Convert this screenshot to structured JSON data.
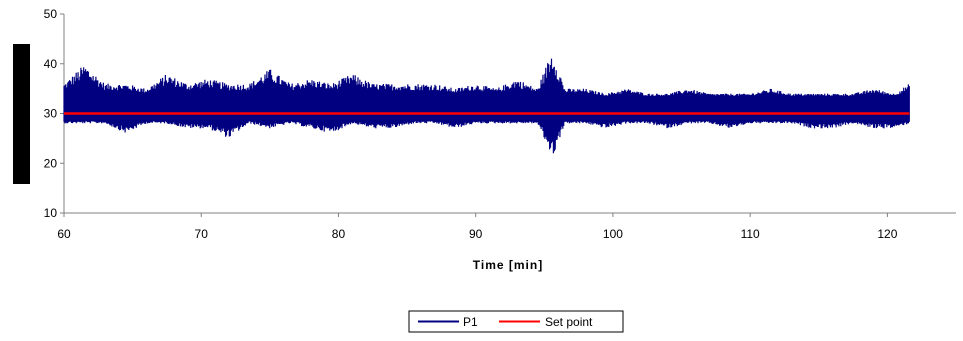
{
  "chart_data": {
    "type": "line",
    "title": "",
    "xlabel": "Time [min]",
    "ylabel": "",
    "xlim": [
      60,
      125
    ],
    "ylim": [
      10,
      50
    ],
    "xticks": [
      60,
      70,
      80,
      90,
      100,
      110,
      120
    ],
    "yticks": [
      10,
      20,
      30,
      40,
      50
    ],
    "grid": false,
    "legend_position": "bottom",
    "series": [
      {
        "name": "P1",
        "color": "#000080",
        "style": "dense noisy trace",
        "x": [
          60.0,
          61.5,
          63.0,
          64.5,
          66.0,
          67.5,
          69.0,
          70.5,
          72.0,
          73.5,
          75.0,
          76.5,
          78.0,
          79.5,
          81.0,
          82.5,
          84.0,
          85.5,
          87.0,
          88.5,
          90.0,
          91.5,
          93.0,
          94.5,
          95.6,
          96.5,
          98.0,
          99.5,
          101.0,
          102.5,
          104.0,
          105.5,
          107.0,
          108.5,
          110.0,
          111.5,
          113.0,
          114.5,
          116.0,
          117.5,
          119.0,
          120.5,
          121.6
        ],
        "upper": [
          36,
          40,
          36,
          36,
          35,
          38,
          36,
          37,
          36,
          36,
          39,
          36,
          37,
          36,
          38,
          36,
          36,
          36,
          36,
          35,
          36,
          35,
          37,
          35,
          43,
          35,
          35,
          34,
          35,
          34,
          34,
          35,
          34,
          34,
          34,
          35,
          34,
          34,
          34,
          34,
          35,
          34,
          36
        ],
        "lower": [
          28,
          28,
          28,
          26,
          28,
          28,
          27,
          27,
          25,
          28,
          27,
          28,
          27,
          26,
          28,
          27,
          27,
          28,
          28,
          27,
          28,
          28,
          28,
          28,
          21,
          28,
          28,
          27,
          28,
          28,
          27,
          28,
          28,
          27,
          28,
          28,
          28,
          27,
          27,
          28,
          27,
          27,
          28
        ]
      },
      {
        "name": "Set point",
        "color": "#ff0000",
        "x": [
          60.0,
          121.6
        ],
        "y": [
          30,
          30
        ]
      }
    ]
  }
}
